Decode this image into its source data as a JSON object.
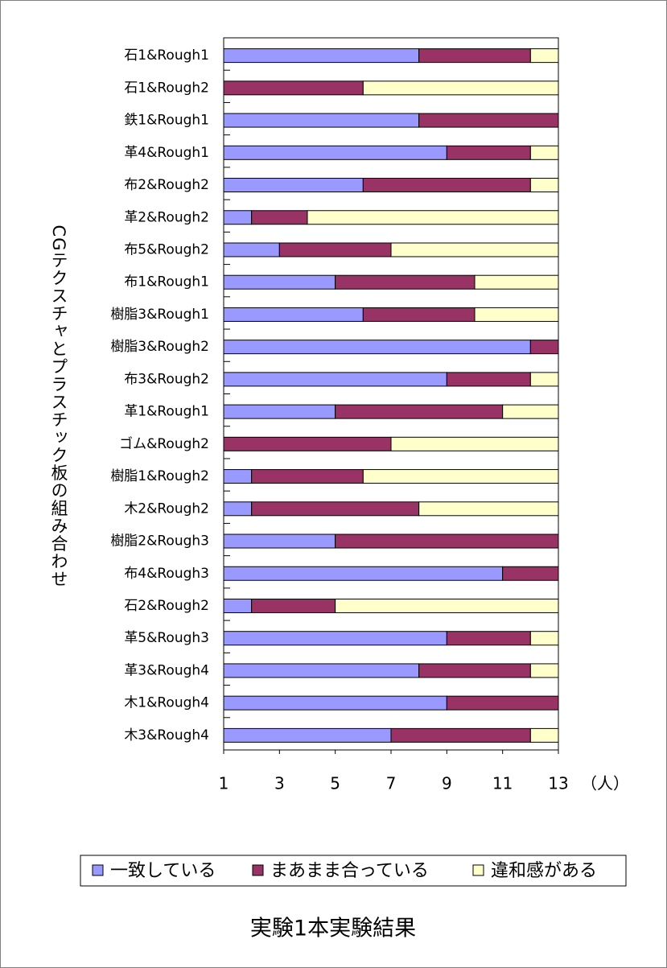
{
  "chart_data": {
    "type": "stacked-barh",
    "title": "実験1本実験結果",
    "ylabel": "CGテクスチャとプラスチック板の組み合わせ",
    "xlabel": "（人）",
    "categories": [
      "石1&Rough1",
      "石1&Rough2",
      "鉄1&Rough1",
      "革4&Rough1",
      "布2&Rough2",
      "革2&Rough2",
      "布5&Rough2",
      "布1&Rough1",
      "樹脂3&Rough1",
      "樹脂3&Rough2",
      "布3&Rough2",
      "革1&Rough1",
      "ゴム&Rough2",
      "樹脂1&Rough2",
      "木2&Rough2",
      "樹脂2&Rough3",
      "布4&Rough3",
      "石2&Rough2",
      "革5&Rough3",
      "革3&Rough4",
      "木1&Rough4",
      "木3&Rough4"
    ],
    "series": [
      {
        "name": "一致している",
        "color": "#9999ff",
        "values": [
          8,
          0,
          8,
          9,
          6,
          2,
          3,
          5,
          6,
          12,
          9,
          5,
          0,
          2,
          2,
          5,
          11,
          2,
          9,
          8,
          9,
          7
        ]
      },
      {
        "name": "まあまま合っている",
        "color": "#993366",
        "values": [
          4,
          6,
          5,
          3,
          6,
          2,
          4,
          5,
          4,
          1,
          3,
          6,
          7,
          4,
          6,
          8,
          2,
          3,
          3,
          4,
          4,
          5
        ]
      },
      {
        "name": "違和感がある",
        "color": "#ffffcc",
        "values": [
          1,
          7,
          0,
          1,
          1,
          9,
          6,
          3,
          3,
          0,
          1,
          2,
          6,
          7,
          5,
          0,
          0,
          8,
          1,
          1,
          0,
          1
        ]
      }
    ],
    "xlim": [
      1,
      13
    ],
    "xticks": [
      1,
      3,
      5,
      7,
      9,
      11,
      13
    ],
    "legend": "bottom"
  }
}
